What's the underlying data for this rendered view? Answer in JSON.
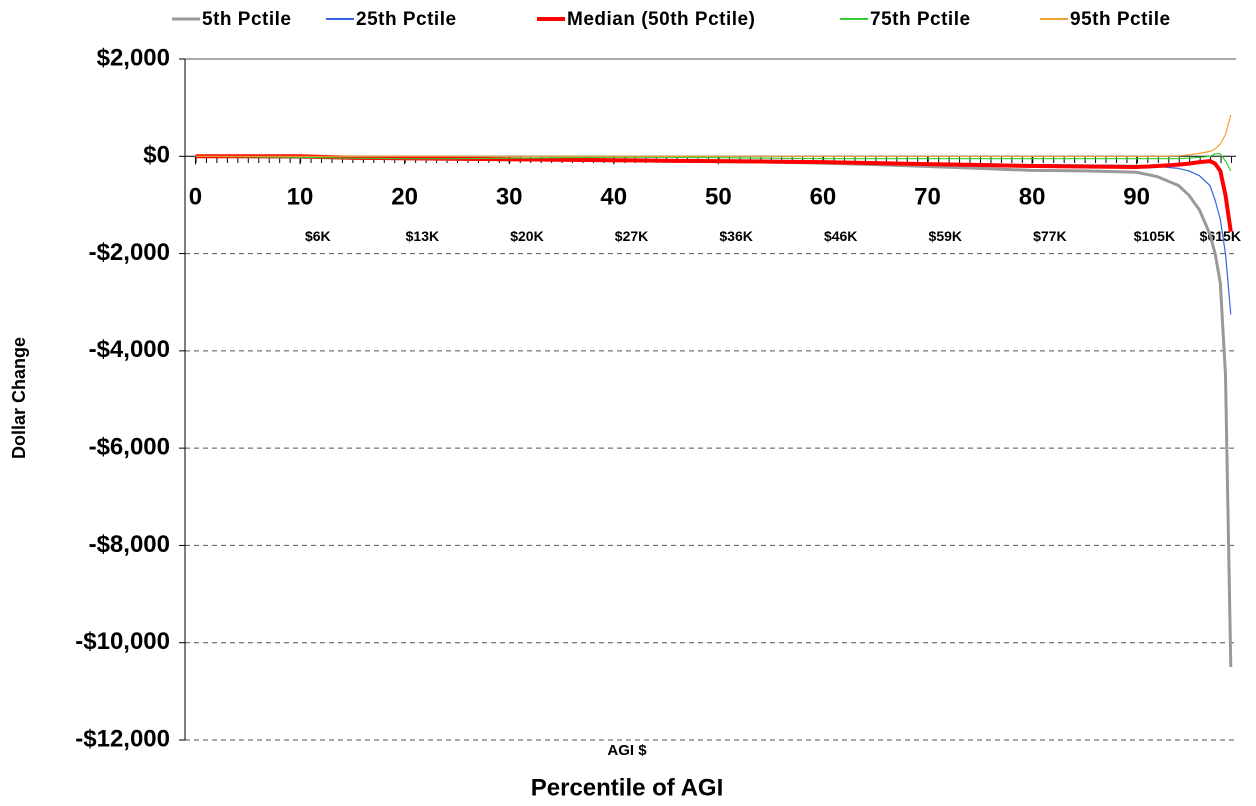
{
  "chart_data": {
    "type": "line",
    "y_label": "Dollar Change",
    "x_label": "Percentile of AGI",
    "x_sublabel": "AGI $",
    "xlim": [
      -1,
      99.5
    ],
    "xticks": [
      0,
      10,
      20,
      30,
      40,
      50,
      60,
      70,
      80,
      90
    ],
    "ylim": [
      -12000,
      2000
    ],
    "yticks": [
      {
        "value": 2000,
        "label": "$2,000"
      },
      {
        "value": 0,
        "label": "$0"
      },
      {
        "value": -2000,
        "label": "-$2,000"
      },
      {
        "value": -4000,
        "label": "-$4,000"
      },
      {
        "value": -6000,
        "label": "-$6,000"
      },
      {
        "value": -8000,
        "label": "-$8,000"
      },
      {
        "value": -10000,
        "label": "-$10,000"
      },
      {
        "value": -12000,
        "label": "-$12,000"
      }
    ],
    "grid": true,
    "legend": "top",
    "agi_labels": [
      {
        "x": 11.7,
        "label": "$6K"
      },
      {
        "x": 21.7,
        "label": "$13K"
      },
      {
        "x": 31.7,
        "label": "$20K"
      },
      {
        "x": 41.7,
        "label": "$27K"
      },
      {
        "x": 51.7,
        "label": "$36K"
      },
      {
        "x": 61.7,
        "label": "$46K"
      },
      {
        "x": 71.7,
        "label": "$59K"
      },
      {
        "x": 81.7,
        "label": "$77K"
      },
      {
        "x": 91.7,
        "label": "$105K"
      },
      {
        "x": 98,
        "label": "$615K"
      }
    ],
    "x": [
      0,
      5,
      10,
      15,
      20,
      25,
      30,
      35,
      40,
      45,
      50,
      55,
      60,
      65,
      70,
      75,
      80,
      85,
      90,
      92,
      94,
      95,
      96,
      97,
      97.5,
      98,
      98.5,
      99
    ],
    "series": [
      {
        "name": "5th Pctile",
        "color": "#999999",
        "width": 3,
        "values": [
          0,
          -10,
          -20,
          -40,
          -50,
          -60,
          -70,
          -80,
          -90,
          -100,
          -110,
          -120,
          -140,
          -170,
          -210,
          -250,
          -290,
          -300,
          -330,
          -420,
          -600,
          -800,
          -1100,
          -1600,
          -2000,
          -2600,
          -4500,
          -10500
        ]
      },
      {
        "name": "25th Pctile",
        "color": "#3366e0",
        "width": 1.2,
        "values": [
          0,
          -10,
          -30,
          -40,
          -50,
          -60,
          -70,
          -80,
          -90,
          -95,
          -100,
          -110,
          -120,
          -130,
          -140,
          -150,
          -170,
          -180,
          -190,
          -210,
          -250,
          -300,
          -400,
          -600,
          -900,
          -1300,
          -2000,
          -3250
        ]
      },
      {
        "name": "Median (50th Pctile)",
        "color": "#ff0000",
        "width": 4,
        "values": [
          0,
          0,
          0,
          -30,
          -40,
          -50,
          -60,
          -70,
          -80,
          -90,
          -100,
          -110,
          -120,
          -140,
          -160,
          -180,
          -200,
          -210,
          -220,
          -200,
          -170,
          -150,
          -120,
          -100,
          -150,
          -300,
          -800,
          -1550
        ]
      },
      {
        "name": "75th Pctile",
        "color": "#33cc33",
        "width": 1.2,
        "values": [
          0,
          -10,
          -20,
          -40,
          -50,
          -50,
          -40,
          -30,
          -20,
          -20,
          -30,
          -40,
          -50,
          -50,
          -50,
          -50,
          -50,
          -50,
          -50,
          -50,
          -50,
          -40,
          -20,
          0,
          50,
          50,
          -100,
          -300
        ]
      },
      {
        "name": "95th Pctile",
        "color": "#f0a030",
        "width": 1.2,
        "values": [
          0,
          0,
          0,
          0,
          0,
          0,
          0,
          0,
          0,
          0,
          0,
          0,
          0,
          0,
          0,
          0,
          0,
          0,
          0,
          0,
          10,
          30,
          60,
          100,
          150,
          250,
          450,
          850
        ]
      }
    ]
  }
}
